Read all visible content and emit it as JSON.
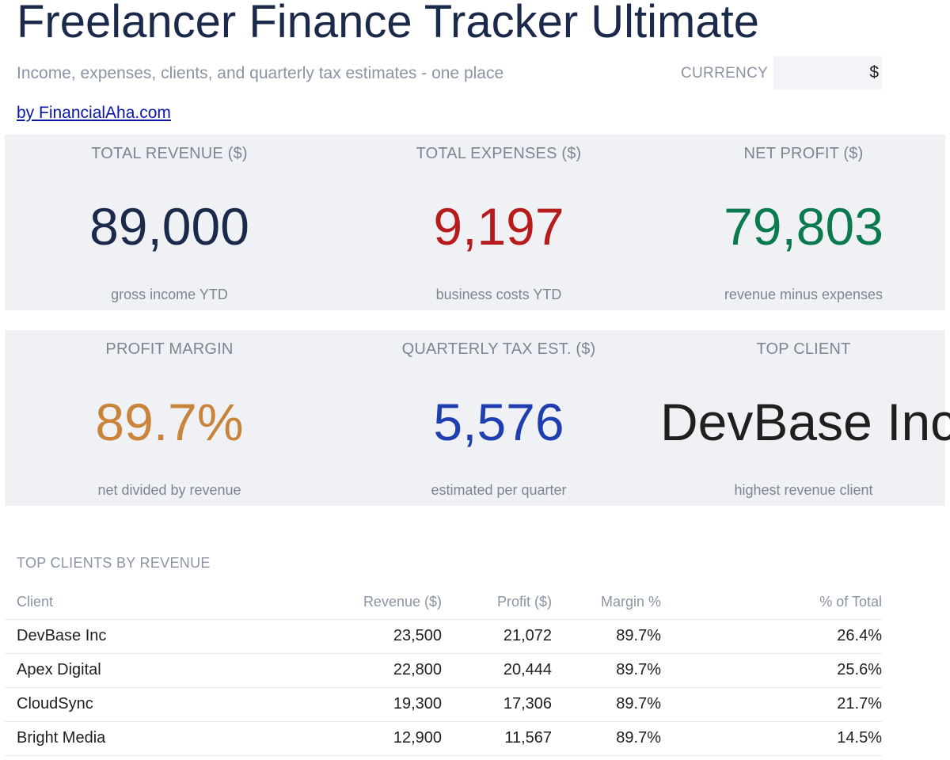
{
  "header": {
    "title": "Freelancer Finance Tracker Ultimate",
    "subtitle": "Income, expenses, clients, and quarterly tax estimates - one place",
    "byline": "by FinancialAha.com",
    "currency_label": "CURRENCY",
    "currency_value": "$"
  },
  "kpis": {
    "total_revenue": {
      "label": "TOTAL REVENUE ($)",
      "value": "89,000",
      "sub": "gross income YTD",
      "color": "#1b2a4a"
    },
    "total_expenses": {
      "label": "TOTAL EXPENSES ($)",
      "value": "9,197",
      "sub": "business costs YTD",
      "color": "#b71c1c"
    },
    "net_profit": {
      "label": "NET PROFIT ($)",
      "value": "79,803",
      "sub": "revenue minus expenses",
      "color": "#0b7a4f"
    },
    "profit_margin": {
      "label": "PROFIT MARGIN",
      "value": "89.7%",
      "sub": "net divided by revenue",
      "color": "#c7843a"
    },
    "quarterly_tax": {
      "label": "QUARTERLY TAX EST. ($)",
      "value": "5,576",
      "sub": "estimated per quarter",
      "color": "#1f3fb0"
    },
    "top_client": {
      "label": "TOP CLIENT",
      "value": "DevBase Inc",
      "sub": "highest revenue client",
      "color": "#1f1f1f"
    }
  },
  "clients_table": {
    "title": "TOP CLIENTS BY REVENUE",
    "columns": [
      "Client",
      "Revenue ($)",
      "Profit ($)",
      "Margin %",
      "% of Total"
    ],
    "rows": [
      [
        "DevBase Inc",
        "23,500",
        "21,072",
        "89.7%",
        "26.4%"
      ],
      [
        "Apex Digital",
        "22,800",
        "20,444",
        "89.7%",
        "25.6%"
      ],
      [
        "CloudSync",
        "19,300",
        "17,306",
        "89.7%",
        "21.7%"
      ],
      [
        "Bright Media",
        "12,900",
        "11,567",
        "89.7%",
        "14.5%"
      ]
    ]
  }
}
